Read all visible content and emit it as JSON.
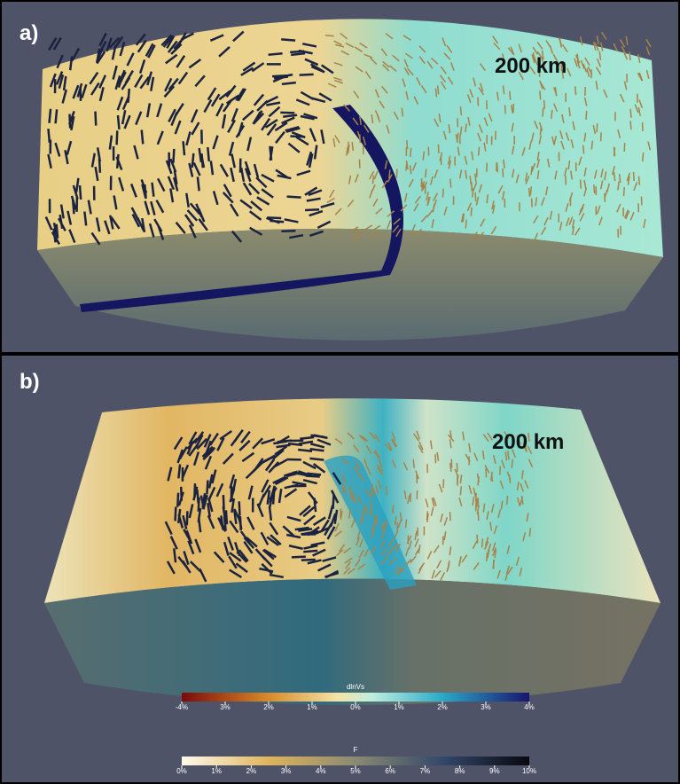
{
  "panels": [
    {
      "label": "a)",
      "depth": "200 km"
    },
    {
      "label": "b)",
      "depth": "200 km"
    }
  ],
  "colorbars": [
    {
      "title": "dlnVs",
      "ticks": [
        "-4%",
        "3%",
        "2%",
        "1%",
        "0%",
        "1%",
        "2%",
        "3%",
        "4%"
      ]
    },
    {
      "title": "F",
      "ticks": [
        "0%",
        "1%",
        "2%",
        "3%",
        "4%",
        "5%",
        "6%",
        "7%",
        "8%",
        "9%",
        "10%"
      ]
    }
  ]
}
